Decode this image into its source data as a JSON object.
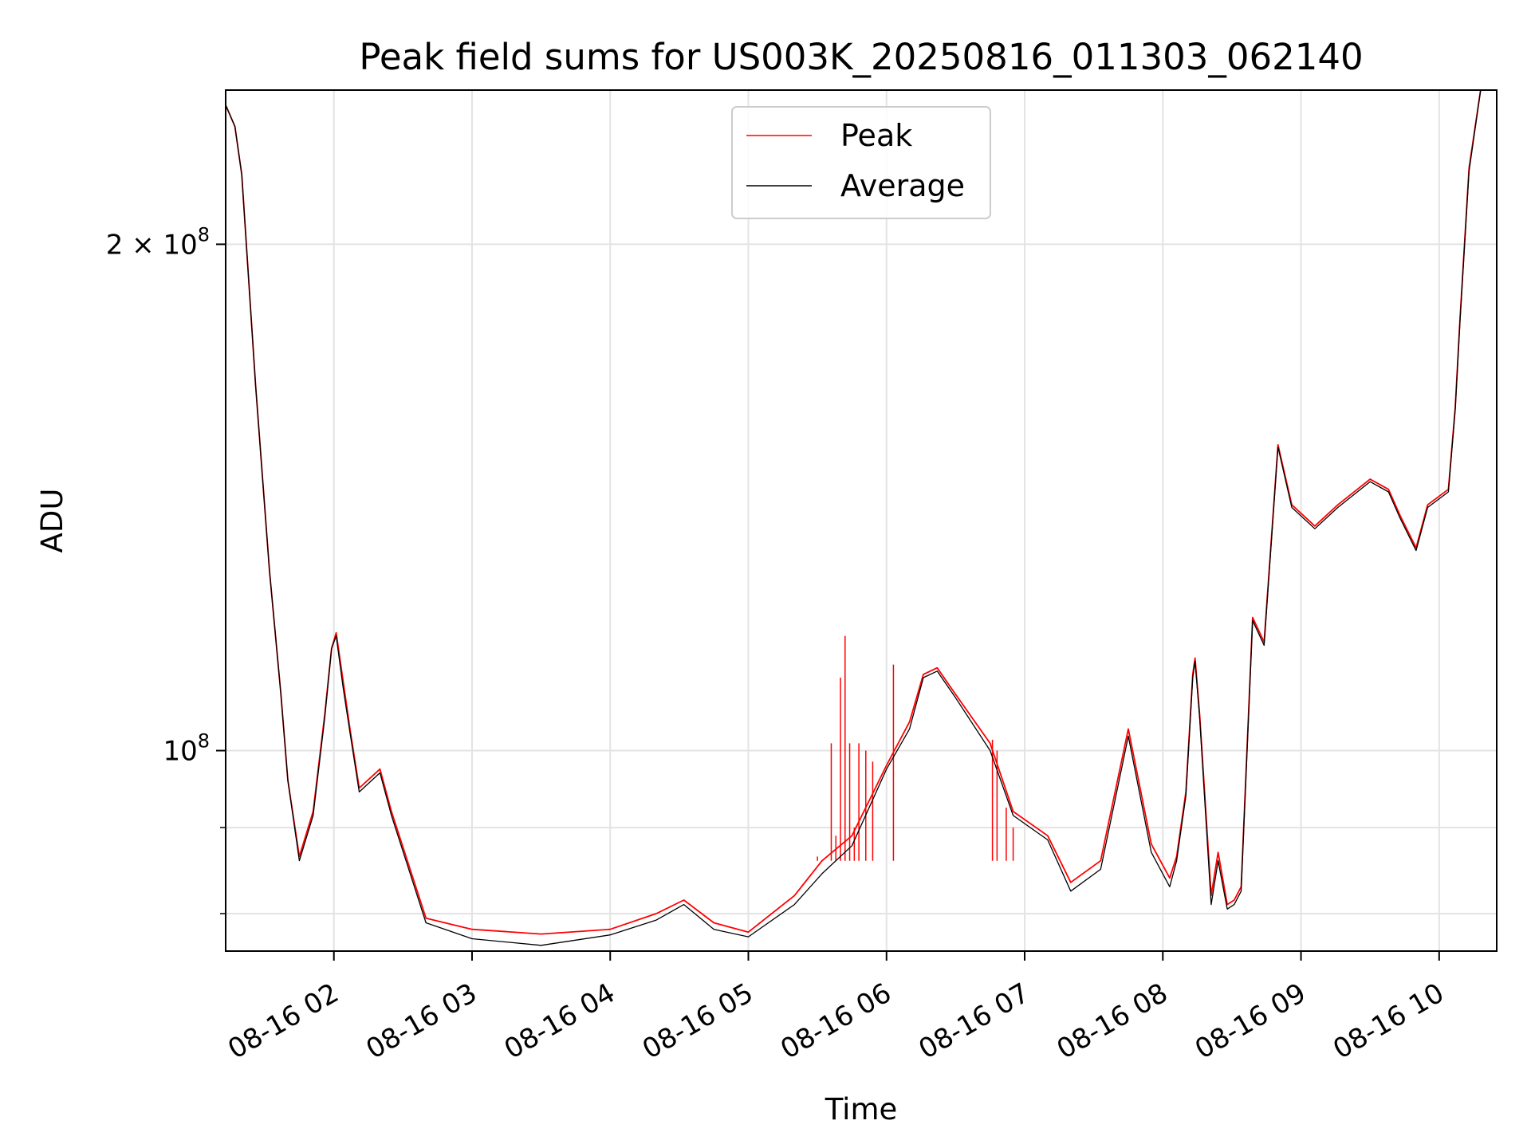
{
  "chart_data": {
    "type": "line",
    "title": "Peak field sums for US003K_20250816_011303_062140",
    "xlabel": "Time",
    "ylabel": "ADU",
    "x_axis": "datetime",
    "y_scale": "log",
    "xlim": [
      "2025-08-16 01:13",
      "2025-08-16 10:25"
    ],
    "ylim": [
      76000000,
      247000000
    ],
    "grid": true,
    "legend": "top-center",
    "x_ticks": [
      {
        "value": "2025-08-16 02:00",
        "label": "08-16 02"
      },
      {
        "value": "2025-08-16 03:00",
        "label": "08-16 03"
      },
      {
        "value": "2025-08-16 04:00",
        "label": "08-16 04"
      },
      {
        "value": "2025-08-16 05:00",
        "label": "08-16 05"
      },
      {
        "value": "2025-08-16 06:00",
        "label": "08-16 06"
      },
      {
        "value": "2025-08-16 07:00",
        "label": "08-16 07"
      },
      {
        "value": "2025-08-16 08:00",
        "label": "08-16 08"
      },
      {
        "value": "2025-08-16 09:00",
        "label": "08-16 09"
      },
      {
        "value": "2025-08-16 10:00",
        "label": "08-16 10"
      }
    ],
    "y_ticks_major": [
      {
        "value": 100000000,
        "base": "10",
        "exp": "8",
        "coef": ""
      },
      {
        "value": 200000000,
        "base": "10",
        "exp": "8",
        "coef": "2 × "
      }
    ],
    "y_ticks_minor": [
      80000000,
      90000000
    ],
    "series": [
      {
        "name": "Peak",
        "color": "#ff0000",
        "x": [
          "2025-08-16 01:13",
          "2025-08-16 01:17",
          "2025-08-16 01:20",
          "2025-08-16 01:26",
          "2025-08-16 01:32",
          "2025-08-16 01:37",
          "2025-08-16 01:40",
          "2025-08-16 01:45",
          "2025-08-16 01:51",
          "2025-08-16 01:56",
          "2025-08-16 01:59",
          "2025-08-16 02:01",
          "2025-08-16 02:04",
          "2025-08-16 02:07",
          "2025-08-16 02:11",
          "2025-08-16 02:20",
          "2025-08-16 02:25",
          "2025-08-16 02:40",
          "2025-08-16 03:00",
          "2025-08-16 03:30",
          "2025-08-16 04:00",
          "2025-08-16 04:20",
          "2025-08-16 04:32",
          "2025-08-16 04:45",
          "2025-08-16 05:00",
          "2025-08-16 05:20",
          "2025-08-16 05:32",
          "2025-08-16 05:45",
          "2025-08-16 06:00",
          "2025-08-16 06:10",
          "2025-08-16 06:16",
          "2025-08-16 06:22",
          "2025-08-16 06:30",
          "2025-08-16 06:45",
          "2025-08-16 06:55",
          "2025-08-16 07:10",
          "2025-08-16 07:20",
          "2025-08-16 07:33",
          "2025-08-16 07:45",
          "2025-08-16 07:55",
          "2025-08-16 08:03",
          "2025-08-16 08:06",
          "2025-08-16 08:10",
          "2025-08-16 08:13",
          "2025-08-16 08:14",
          "2025-08-16 08:16",
          "2025-08-16 08:21",
          "2025-08-16 08:24",
          "2025-08-16 08:28",
          "2025-08-16 08:31",
          "2025-08-16 08:34",
          "2025-08-16 08:39",
          "2025-08-16 08:44",
          "2025-08-16 08:50",
          "2025-08-16 08:56",
          "2025-08-16 09:06",
          "2025-08-16 09:16",
          "2025-08-16 09:30",
          "2025-08-16 09:38",
          "2025-08-16 09:43",
          "2025-08-16 09:50",
          "2025-08-16 09:55",
          "2025-08-16 10:04",
          "2025-08-16 10:07",
          "2025-08-16 10:09",
          "2025-08-16 10:13",
          "2025-08-16 10:18"
        ],
        "y": [
          242000000,
          235000000,
          220000000,
          165000000,
          128000000,
          108000000,
          96000000,
          86500000,
          92000000,
          105000000,
          115000000,
          117500000,
          110000000,
          103000000,
          95000000,
          97500000,
          92000000,
          79500000,
          78300000,
          77800000,
          78300000,
          80000000,
          81500000,
          79000000,
          78000000,
          82000000,
          86000000,
          89000000,
          98000000,
          104000000,
          111000000,
          112000000,
          108000000,
          101000000,
          92000000,
          89000000,
          83500000,
          86000000,
          103000000,
          88000000,
          84000000,
          86500000,
          94500000,
          111000000,
          113500000,
          105000000,
          82000000,
          87000000,
          81000000,
          81500000,
          83000000,
          120000000,
          116000000,
          152000000,
          140000000,
          136000000,
          140000000,
          145000000,
          143000000,
          138000000,
          132000000,
          140000000,
          143000000,
          160000000,
          180000000,
          222000000,
          247000000
        ]
      },
      {
        "name": "Average",
        "color": "#000000",
        "x": [
          "2025-08-16 01:13",
          "2025-08-16 01:17",
          "2025-08-16 01:20",
          "2025-08-16 01:26",
          "2025-08-16 01:32",
          "2025-08-16 01:37",
          "2025-08-16 01:40",
          "2025-08-16 01:45",
          "2025-08-16 01:51",
          "2025-08-16 01:56",
          "2025-08-16 01:59",
          "2025-08-16 02:01",
          "2025-08-16 02:04",
          "2025-08-16 02:07",
          "2025-08-16 02:11",
          "2025-08-16 02:20",
          "2025-08-16 02:25",
          "2025-08-16 02:40",
          "2025-08-16 03:00",
          "2025-08-16 03:30",
          "2025-08-16 04:00",
          "2025-08-16 04:20",
          "2025-08-16 04:32",
          "2025-08-16 04:45",
          "2025-08-16 05:00",
          "2025-08-16 05:20",
          "2025-08-16 05:32",
          "2025-08-16 05:45",
          "2025-08-16 06:00",
          "2025-08-16 06:10",
          "2025-08-16 06:16",
          "2025-08-16 06:22",
          "2025-08-16 06:30",
          "2025-08-16 06:45",
          "2025-08-16 06:55",
          "2025-08-16 07:10",
          "2025-08-16 07:20",
          "2025-08-16 07:33",
          "2025-08-16 07:45",
          "2025-08-16 07:55",
          "2025-08-16 08:03",
          "2025-08-16 08:06",
          "2025-08-16 08:10",
          "2025-08-16 08:13",
          "2025-08-16 08:14",
          "2025-08-16 08:16",
          "2025-08-16 08:21",
          "2025-08-16 08:24",
          "2025-08-16 08:28",
          "2025-08-16 08:31",
          "2025-08-16 08:34",
          "2025-08-16 08:39",
          "2025-08-16 08:44",
          "2025-08-16 08:50",
          "2025-08-16 08:56",
          "2025-08-16 09:06",
          "2025-08-16 09:16",
          "2025-08-16 09:30",
          "2025-08-16 09:38",
          "2025-08-16 09:43",
          "2025-08-16 09:50",
          "2025-08-16 09:55",
          "2025-08-16 10:04",
          "2025-08-16 10:07",
          "2025-08-16 10:09",
          "2025-08-16 10:13",
          "2025-08-16 10:18"
        ],
        "y": [
          242000000,
          235000000,
          220000000,
          165000000,
          128000000,
          108000000,
          96000000,
          86000000,
          91500000,
          104500000,
          115000000,
          117000000,
          109000000,
          102500000,
          94500000,
          97000000,
          91500000,
          79000000,
          77300000,
          76600000,
          77700000,
          79300000,
          81000000,
          78300000,
          77500000,
          81000000,
          84500000,
          87800000,
          97500000,
          103000000,
          110500000,
          111500000,
          107500000,
          100000000,
          91500000,
          88500000,
          82500000,
          85000000,
          102000000,
          87000000,
          83000000,
          86000000,
          94000000,
          110500000,
          113000000,
          104500000,
          81000000,
          86000000,
          80500000,
          81000000,
          82500000,
          119500000,
          115500000,
          151500000,
          139500000,
          135500000,
          139500000,
          144500000,
          142500000,
          137500000,
          131500000,
          139500000,
          142500000,
          159500000,
          179500000,
          221000000,
          247000000
        ]
      }
    ],
    "spikes": {
      "series": "Peak",
      "color": "#ff0000",
      "x": [
        "2025-08-16 05:30",
        "2025-08-16 05:36",
        "2025-08-16 05:38",
        "2025-08-16 05:40",
        "2025-08-16 05:42",
        "2025-08-16 05:44",
        "2025-08-16 05:46",
        "2025-08-16 05:48",
        "2025-08-16 05:51",
        "2025-08-16 05:54",
        "2025-08-16 06:03",
        "2025-08-16 06:46",
        "2025-08-16 06:48",
        "2025-08-16 06:52",
        "2025-08-16 06:55"
      ],
      "y": [
        86500000,
        101000000,
        89000000,
        110500000,
        117000000,
        101000000,
        90000000,
        101000000,
        100000000,
        98500000,
        112500000,
        101500000,
        100000000,
        92500000,
        90000000
      ]
    }
  }
}
